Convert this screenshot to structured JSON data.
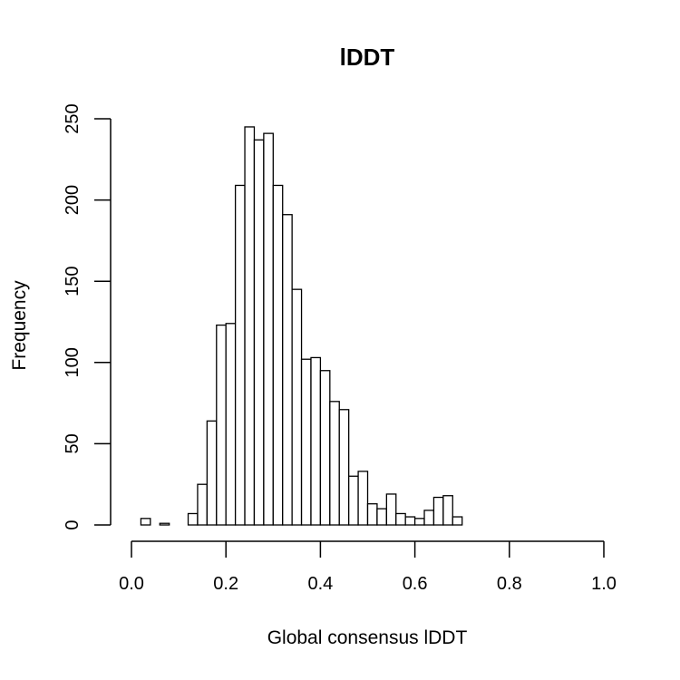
{
  "chart_data": {
    "type": "bar",
    "subtype": "histogram",
    "title": "lDDT",
    "xlabel": "Global consensus lDDT",
    "ylabel": "Frequency",
    "xlim": [
      0.0,
      1.0
    ],
    "ylim": [
      0,
      250
    ],
    "bin_width": 0.02,
    "bin_start": 0.0,
    "counts": [
      0,
      4,
      0,
      1,
      0,
      0,
      7,
      25,
      64,
      123,
      124,
      209,
      245,
      237,
      241,
      209,
      191,
      145,
      102,
      103,
      95,
      76,
      71,
      30,
      33,
      13,
      10,
      19,
      7,
      5,
      4,
      9,
      17,
      18,
      5,
      0,
      0,
      0,
      0,
      0,
      0,
      0,
      0,
      0,
      0,
      0,
      0,
      0,
      0,
      0
    ],
    "x_ticks": [
      "0.0",
      "0.2",
      "0.4",
      "0.6",
      "0.8",
      "1.0"
    ],
    "y_ticks": [
      "0",
      "50",
      "100",
      "150",
      "200",
      "250"
    ],
    "x_tick_values": [
      0.0,
      0.2,
      0.4,
      0.6,
      0.8,
      1.0
    ],
    "y_tick_values": [
      0,
      50,
      100,
      150,
      200,
      250
    ],
    "grid": false,
    "legend": "none",
    "bar_fill": "#ffffff",
    "bar_stroke": "#000000"
  }
}
